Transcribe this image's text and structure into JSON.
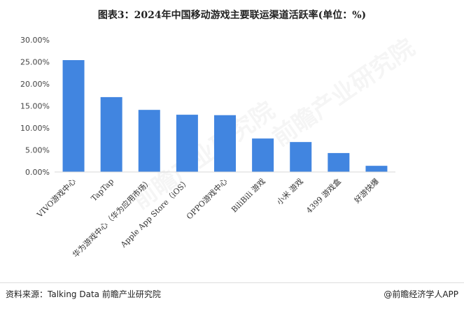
{
  "title": "图表3：2024年中国移动游戏主要联运渠道活跃率(单位：%)",
  "footer": {
    "source": "资料来源：Talking Data 前瞻产业研究院",
    "credit": "@前瞻经济学人APP"
  },
  "watermark": "前瞻产业研究院",
  "chart_data": {
    "type": "bar",
    "title": "图表3：2024年中国移动游戏主要联运渠道活跃率(单位：%)",
    "categories": [
      "VIVO游戏中心",
      "TapTap",
      "华为游戏中心（华为应用市场）",
      "Apple App Store（iOS）",
      "OPPO游戏中心",
      "BiliBili 游戏",
      "小米 游戏",
      "4399 游戏盒",
      "好游快爆"
    ],
    "values": [
      25.4,
      17.0,
      14.1,
      13.0,
      12.9,
      7.6,
      6.8,
      4.3,
      1.4
    ],
    "ylim": [
      0,
      30
    ],
    "yticks": [
      "0.00%",
      "5.00%",
      "10.00%",
      "15.00%",
      "20.00%",
      "25.00%",
      "30.00%"
    ],
    "grid": false,
    "legend": "none",
    "bar_color": "#4185E0"
  }
}
